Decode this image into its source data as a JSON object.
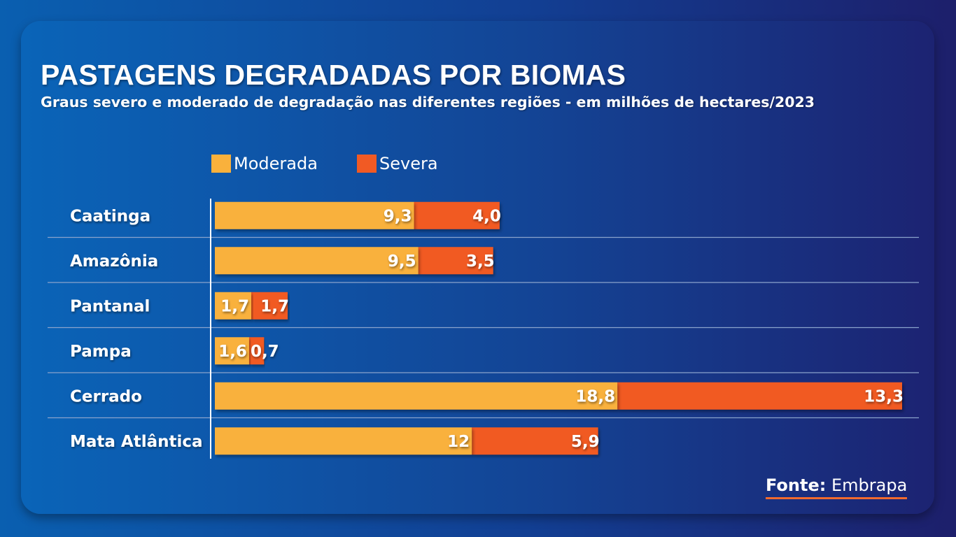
{
  "title": "PASTAGENS DEGRADADAS POR BIOMAS",
  "subtitle": "Graus severo e moderado de degradação nas diferentes regiões - em milhões de hectares/2023",
  "source": {
    "prefix": "Fonte:",
    "name": "Embrapa"
  },
  "colors": {
    "moderada": "#f9b13c",
    "severa": "#f15a24",
    "separator": "#8aa3cc"
  },
  "chart_data": {
    "type": "bar",
    "orientation": "horizontal",
    "stacked": true,
    "categories": [
      "Caatinga",
      "Amazônia",
      "Pantanal",
      "Pampa",
      "Cerrado",
      "Mata Atlântica"
    ],
    "series": [
      {
        "name": "Moderada",
        "values": [
          9.3,
          9.5,
          1.7,
          1.6,
          18.8,
          12
        ],
        "labels": [
          "9,3",
          "9,5",
          "1,7",
          "1,6",
          "18,8",
          "12"
        ]
      },
      {
        "name": "Severa",
        "values": [
          4.0,
          3.5,
          1.7,
          0.7,
          13.3,
          5.9
        ],
        "labels": [
          "4,0",
          "3,5",
          "1,7",
          "0,7",
          "13,3",
          "5,9"
        ]
      }
    ],
    "xlim": [
      0,
      32.1
    ],
    "legend_position": "top-left",
    "grid": false
  }
}
